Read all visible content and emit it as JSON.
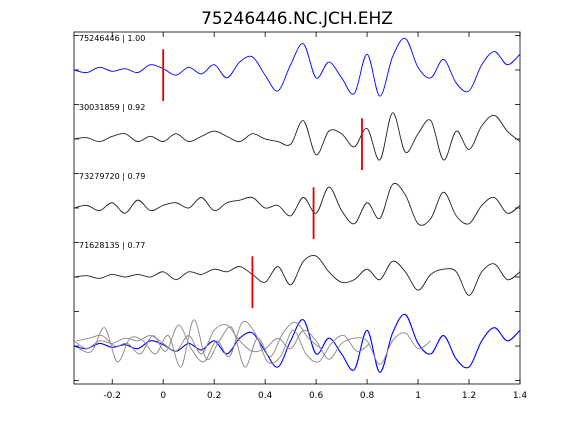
{
  "chart_data": {
    "type": "line",
    "title": "75246446.NC.JCH.EHZ",
    "xlabel": "",
    "ylabel": "",
    "xlim": [
      -0.35,
      1.4
    ],
    "xticks": [
      -0.2,
      0,
      0.2,
      0.4,
      0.6,
      0.8,
      1,
      1.2,
      1.4
    ],
    "xtick_labels": [
      "-0.2",
      "0",
      "0.2",
      "0.4",
      "0.6",
      "0.8",
      "1",
      "1.2",
      "1.4"
    ],
    "grid": false,
    "traces": [
      {
        "label": "75246446 | 1.00",
        "color": "#0000ff",
        "pick_time": 0.0,
        "x": [
          -0.35,
          -0.3,
          -0.25,
          -0.2,
          -0.15,
          -0.1,
          -0.05,
          0,
          0.05,
          0.1,
          0.15,
          0.2,
          0.25,
          0.3,
          0.35,
          0.4,
          0.45,
          0.5,
          0.55,
          0.6,
          0.65,
          0.7,
          0.75,
          0.8,
          0.85,
          0.9,
          0.95,
          1,
          1.05,
          1.1,
          1.15,
          1.2,
          1.25,
          1.3,
          1.35,
          1.4
        ],
        "y": [
          0,
          -0.1,
          0.1,
          -0.05,
          0.05,
          -0.1,
          0.2,
          0.05,
          -0.2,
          0.1,
          -0.15,
          0.2,
          -0.3,
          0.3,
          0.5,
          -0.2,
          -0.8,
          0.2,
          1.0,
          -0.3,
          0.3,
          -0.3,
          -0.9,
          0.6,
          -1.0,
          0.5,
          1.2,
          0.1,
          -0.3,
          0.4,
          -0.5,
          -0.8,
          0.2,
          0.7,
          0.2,
          0.6
        ]
      },
      {
        "label": "30031859 | 0.92",
        "color": "#222222",
        "pick_time": 0.78,
        "x": [
          -0.35,
          -0.3,
          -0.25,
          -0.2,
          -0.15,
          -0.1,
          -0.05,
          0,
          0.05,
          0.1,
          0.15,
          0.2,
          0.25,
          0.3,
          0.35,
          0.4,
          0.45,
          0.5,
          0.55,
          0.6,
          0.65,
          0.7,
          0.75,
          0.8,
          0.85,
          0.9,
          0.95,
          1,
          1.05,
          1.1,
          1.15,
          1.2,
          1.25,
          1.3,
          1.35,
          1.4
        ],
        "y": [
          0,
          0.05,
          -0.1,
          0.1,
          0.2,
          -0.1,
          0.1,
          -0.1,
          0.2,
          -0.1,
          0.1,
          0.3,
          0.1,
          -0.1,
          0.2,
          0.0,
          -0.1,
          -0.2,
          0.7,
          -0.6,
          0.3,
          0.2,
          -0.3,
          0.4,
          -0.8,
          1.0,
          -0.5,
          0.2,
          0.7,
          -0.8,
          0.3,
          -0.4,
          0.5,
          0.9,
          0.3,
          -0.1
        ]
      },
      {
        "label": "73279720 | 0.79",
        "color": "#222222",
        "pick_time": 0.59,
        "x": [
          -0.35,
          -0.3,
          -0.25,
          -0.2,
          -0.15,
          -0.1,
          -0.05,
          0,
          0.05,
          0.1,
          0.15,
          0.2,
          0.25,
          0.3,
          0.35,
          0.4,
          0.45,
          0.5,
          0.55,
          0.6,
          0.65,
          0.7,
          0.75,
          0.8,
          0.85,
          0.9,
          0.95,
          1,
          1.05,
          1.1,
          1.15,
          1.2,
          1.25,
          1.3,
          1.35,
          1.4
        ],
        "y": [
          0,
          0.1,
          -0.1,
          0.2,
          -0.2,
          0.3,
          -0.1,
          0.1,
          0.2,
          0.0,
          0.4,
          -0.1,
          0.2,
          0.3,
          0.4,
          0.0,
          0.1,
          -0.3,
          0.4,
          -0.2,
          0.8,
          -0.1,
          -0.6,
          0.2,
          -0.4,
          0.9,
          0.5,
          -0.6,
          -0.4,
          0.6,
          -0.3,
          -0.6,
          0.1,
          0.4,
          -0.2,
          0.1
        ]
      },
      {
        "label": "71628135 | 0.77",
        "color": "#222222",
        "pick_time": 0.35,
        "x": [
          -0.35,
          -0.3,
          -0.25,
          -0.2,
          -0.15,
          -0.1,
          -0.05,
          0,
          0.05,
          0.1,
          0.15,
          0.2,
          0.25,
          0.3,
          0.35,
          0.4,
          0.45,
          0.5,
          0.55,
          0.6,
          0.65,
          0.7,
          0.75,
          0.8,
          0.85,
          0.9,
          0.95,
          1,
          1.05,
          1.1,
          1.15,
          1.2,
          1.25,
          1.3,
          1.35,
          1.4
        ],
        "y": [
          0,
          0.05,
          -0.05,
          0.1,
          0.0,
          0.1,
          0.0,
          0.2,
          -0.1,
          0.2,
          0.1,
          0.3,
          0.2,
          0.4,
          0.1,
          -0.2,
          0.4,
          -0.3,
          0.6,
          0.8,
          0.2,
          -0.2,
          -0.1,
          0.3,
          -0.1,
          0.6,
          0.2,
          -0.5,
          0.1,
          0.3,
          0.2,
          -0.7,
          0.2,
          0.5,
          -0.1,
          0.2
        ]
      }
    ]
  }
}
